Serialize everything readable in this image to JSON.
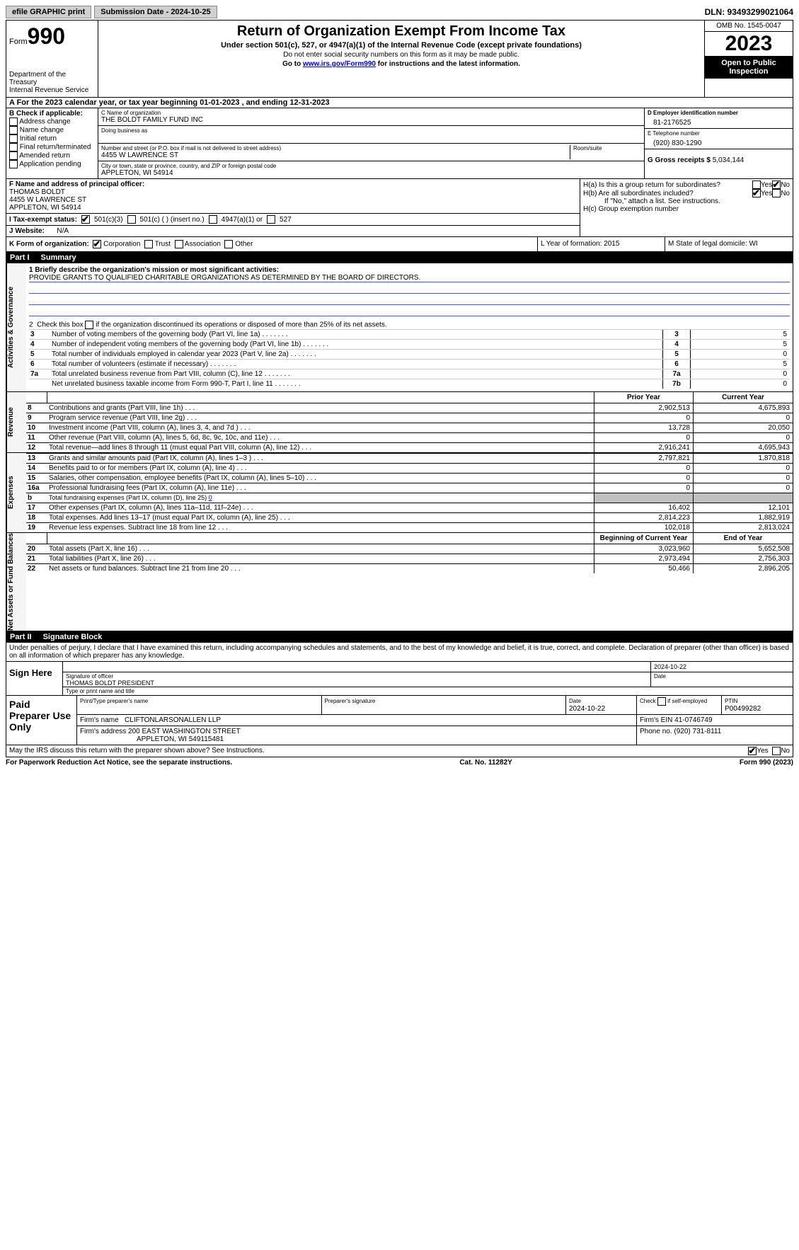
{
  "topbar": {
    "efile": "efile GRAPHIC print",
    "submission": "Submission Date - 2024-10-25",
    "dln": "DLN: 93493299021064"
  },
  "header": {
    "form_label": "Form",
    "form_num": "990",
    "dept": "Department of the Treasury",
    "irs": "Internal Revenue Service",
    "title": "Return of Organization Exempt From Income Tax",
    "sub": "Under section 501(c), 527, or 4947(a)(1) of the Internal Revenue Code (except private foundations)",
    "note1": "Do not enter social security numbers on this form as it may be made public.",
    "note2_pre": "Go to ",
    "note2_link": "www.irs.gov/Form990",
    "note2_post": " for instructions and the latest information.",
    "omb": "OMB No. 1545-0047",
    "year": "2023",
    "open": "Open to Public Inspection"
  },
  "section_a": "A  For the 2023 calendar year, or tax year beginning 01-01-2023    , and ending 12-31-2023",
  "box_b": {
    "title": "B Check if applicable:",
    "items": [
      "Address change",
      "Name change",
      "Initial return",
      "Final return/terminated",
      "Amended return",
      "Application pending"
    ]
  },
  "box_c": {
    "name_label": "C Name of organization",
    "name": "THE BOLDT FAMILY FUND INC",
    "dba_label": "Doing business as",
    "addr_label": "Number and street (or P.O. box if mail is not delivered to street address)",
    "room_label": "Room/suite",
    "addr": "4455 W LAWRENCE ST",
    "city_label": "City or town, state or province, country, and ZIP or foreign postal code",
    "city": "APPLETON, WI   54914"
  },
  "box_d": {
    "label": "D Employer identification number",
    "value": "81-2176525"
  },
  "box_e": {
    "label": "E Telephone number",
    "value": "(920) 830-1290"
  },
  "box_g": {
    "label": "G Gross receipts $",
    "value": "5,034,144"
  },
  "box_f": {
    "label": "F  Name and address of principal officer:",
    "lines": [
      "THOMAS BOLDT",
      "4455 W LAWRENCE ST",
      "APPLETON, WI   54914"
    ]
  },
  "box_h": {
    "ha": "H(a)  Is this a group return for subordinates?",
    "hb": "H(b)  Are all subordinates included?",
    "hb_note": "If \"No,\" attach a list. See instructions.",
    "hc": "H(c)  Group exemption number"
  },
  "box_i": {
    "label": "I   Tax-exempt status:",
    "opts": [
      "501(c)(3)",
      "501(c) (  ) (insert no.)",
      "4947(a)(1) or",
      "527"
    ]
  },
  "box_j": {
    "label": "J   Website:",
    "value": "N/A"
  },
  "box_k": {
    "label": "K Form of organization:",
    "opts": [
      "Corporation",
      "Trust",
      "Association",
      "Other"
    ]
  },
  "box_l": "L Year of formation: 2015",
  "box_m": "M State of legal domicile: WI",
  "part1": {
    "label": "Part I",
    "title": "Summary"
  },
  "summary": {
    "mission_label": "1   Briefly describe the organization's mission or most significant activities:",
    "mission": "PROVIDE GRANTS TO QUALIFIED CHARITABLE ORGANIZATIONS AS DETERMINED BY THE BOARD OF DIRECTORS.",
    "line2": "2   Check this box      if the organization discontinued its operations or disposed of more than 25% of its net assets.",
    "vlabels": {
      "gov": "Activities & Governance",
      "rev": "Revenue",
      "exp": "Expenses",
      "net": "Net Assets or Fund Balances"
    },
    "hdr_prior": "Prior Year",
    "hdr_current": "Current Year",
    "hdr_begin": "Beginning of Current Year",
    "hdr_end": "End of Year",
    "rows_gov": [
      {
        "n": "3",
        "d": "Number of voting members of the governing body (Part VI, line 1a)",
        "k": "3",
        "v": "5"
      },
      {
        "n": "4",
        "d": "Number of independent voting members of the governing body (Part VI, line 1b)",
        "k": "4",
        "v": "5"
      },
      {
        "n": "5",
        "d": "Total number of individuals employed in calendar year 2023 (Part V, line 2a)",
        "k": "5",
        "v": "0"
      },
      {
        "n": "6",
        "d": "Total number of volunteers (estimate if necessary)",
        "k": "6",
        "v": "5"
      },
      {
        "n": "7a",
        "d": "Total unrelated business revenue from Part VIII, column (C), line 12",
        "k": "7a",
        "v": "0"
      },
      {
        "n": "",
        "d": "Net unrelated business taxable income from Form 990-T, Part I, line 11",
        "k": "7b",
        "v": "0"
      }
    ],
    "rows_rev": [
      {
        "n": "8",
        "d": "Contributions and grants (Part VIII, line 1h)",
        "p": "2,902,513",
        "c": "4,675,893"
      },
      {
        "n": "9",
        "d": "Program service revenue (Part VIII, line 2g)",
        "p": "0",
        "c": "0"
      },
      {
        "n": "10",
        "d": "Investment income (Part VIII, column (A), lines 3, 4, and 7d )",
        "p": "13,728",
        "c": "20,050"
      },
      {
        "n": "11",
        "d": "Other revenue (Part VIII, column (A), lines 5, 6d, 8c, 9c, 10c, and 11e)",
        "p": "0",
        "c": "0"
      },
      {
        "n": "12",
        "d": "Total revenue—add lines 8 through 11 (must equal Part VIII, column (A), line 12)",
        "p": "2,916,241",
        "c": "4,695,943"
      }
    ],
    "rows_exp": [
      {
        "n": "13",
        "d": "Grants and similar amounts paid (Part IX, column (A), lines 1–3 )",
        "p": "2,797,821",
        "c": "1,870,818"
      },
      {
        "n": "14",
        "d": "Benefits paid to or for members (Part IX, column (A), line 4)",
        "p": "0",
        "c": "0"
      },
      {
        "n": "15",
        "d": "Salaries, other compensation, employee benefits (Part IX, column (A), lines 5–10)",
        "p": "0",
        "c": "0"
      },
      {
        "n": "16a",
        "d": "Professional fundraising fees (Part IX, column (A), line 11e)",
        "p": "0",
        "c": "0"
      }
    ],
    "row16b": {
      "n": "b",
      "d": "Total fundraising expenses (Part IX, column (D), line 25)",
      "v": "0"
    },
    "rows_exp2": [
      {
        "n": "17",
        "d": "Other expenses (Part IX, column (A), lines 11a–11d, 11f–24e)",
        "p": "16,402",
        "c": "12,101"
      },
      {
        "n": "18",
        "d": "Total expenses. Add lines 13–17 (must equal Part IX, column (A), line 25)",
        "p": "2,814,223",
        "c": "1,882,919"
      },
      {
        "n": "19",
        "d": "Revenue less expenses. Subtract line 18 from line 12",
        "p": "102,018",
        "c": "2,813,024"
      }
    ],
    "rows_net": [
      {
        "n": "20",
        "d": "Total assets (Part X, line 16)",
        "p": "3,023,960",
        "c": "5,652,508"
      },
      {
        "n": "21",
        "d": "Total liabilities (Part X, line 26)",
        "p": "2,973,494",
        "c": "2,756,303"
      },
      {
        "n": "22",
        "d": "Net assets or fund balances. Subtract line 21 from line 20",
        "p": "50,466",
        "c": "2,896,205"
      }
    ]
  },
  "part2": {
    "label": "Part II",
    "title": "Signature Block"
  },
  "sig": {
    "decl": "Under penalties of perjury, I declare that I have examined this return, including accompanying schedules and statements, and to the best of my knowledge and belief, it is true, correct, and complete. Declaration of preparer (other than officer) is based on all information of which preparer has any knowledge.",
    "sign_here": "Sign Here",
    "date1": "2024-10-22",
    "sig_label": "Signature of officer",
    "date_label": "Date",
    "name": "THOMAS BOLDT PRESIDENT",
    "name_label": "Type or print name and title"
  },
  "prep": {
    "title": "Paid Preparer Use Only",
    "h1": "Print/Type preparer's name",
    "h2": "Preparer's signature",
    "h3": "Date",
    "h4": "Check       if self-employed",
    "h5": "PTIN",
    "date": "2024-10-22",
    "ptin": "P00499282",
    "firm_label": "Firm's name",
    "firm": "CLIFTONLARSONALLEN LLP",
    "ein_label": "Firm's EIN",
    "ein": "41-0746749",
    "addr_label": "Firm's address",
    "addr1": "200 EAST WASHINGTON STREET",
    "addr2": "APPLETON, WI   549115481",
    "phone_label": "Phone no.",
    "phone": "(920) 731-8111"
  },
  "footer": {
    "discuss": "May the IRS discuss this return with the preparer shown above? See Instructions.",
    "yes": "Yes",
    "no": "No",
    "paperwork": "For Paperwork Reduction Act Notice, see the separate instructions.",
    "cat": "Cat. No. 11282Y",
    "form": "Form 990 (2023)"
  }
}
